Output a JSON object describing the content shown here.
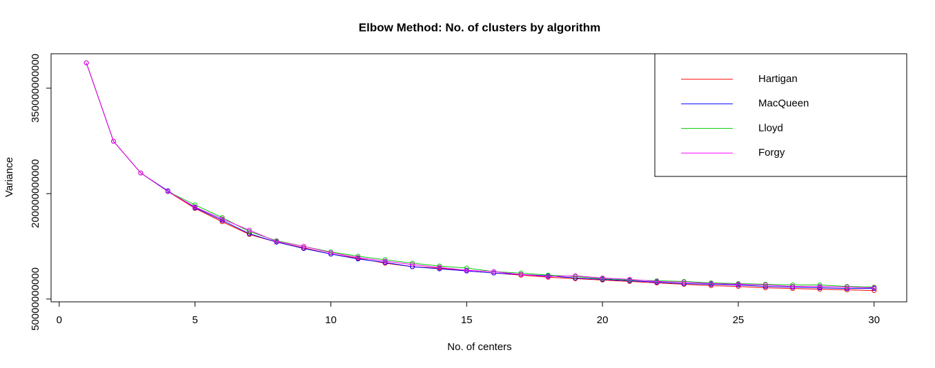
{
  "chart_data": {
    "type": "line",
    "title": "Elbow Method: No. of clusters by algorithm",
    "x_label": "No. of centers",
    "y_label": "Variance",
    "x": [
      1,
      2,
      3,
      4,
      5,
      6,
      7,
      8,
      9,
      10,
      11,
      12,
      13,
      14,
      15,
      16,
      17,
      18,
      19,
      20,
      21,
      22,
      23,
      24,
      25,
      26,
      27,
      28,
      29,
      30
    ],
    "series": [
      {
        "name": "Hartigan",
        "color": "#ff0000",
        "values": [
          386000000000,
          274500000000,
          229400000000,
          203000000000,
          179000000000,
          160000000000,
          142000000000,
          131000000000,
          123000000000,
          114000000000,
          108000000000,
          101000000000,
          96000000000,
          94000000000,
          90000000000,
          87000000000,
          84000000000,
          81000000000,
          79000000000,
          77000000000,
          75000000000,
          73000000000,
          71000000000,
          69000000000,
          68000000000,
          66000000000,
          65000000000,
          64000000000,
          63000000000,
          62000000000
        ]
      },
      {
        "name": "MacQueen",
        "color": "#0000ff",
        "values": [
          386000000000,
          274500000000,
          229400000000,
          204000000000,
          180000000000,
          162000000000,
          143000000000,
          131000000000,
          122000000000,
          114000000000,
          107000000000,
          102000000000,
          96000000000,
          93000000000,
          90000000000,
          87000000000,
          85000000000,
          83000000000,
          80000000000,
          78000000000,
          76000000000,
          74000000000,
          72000000000,
          71000000000,
          70000000000,
          68000000000,
          67000000000,
          66000000000,
          65000000000,
          65000000000
        ]
      },
      {
        "name": "Lloyd",
        "color": "#00cd00",
        "values": [
          386000000000,
          274500000000,
          229400000000,
          203000000000,
          184000000000,
          166000000000,
          146000000000,
          133000000000,
          125000000000,
          117000000000,
          111000000000,
          106000000000,
          101000000000,
          97000000000,
          94000000000,
          89000000000,
          87000000000,
          84000000000,
          82000000000,
          79000000000,
          77000000000,
          76000000000,
          75000000000,
          73000000000,
          72000000000,
          71000000000,
          70000000000,
          70000000000,
          68000000000,
          67000000000
        ]
      },
      {
        "name": "Forgy",
        "color": "#ff00ff",
        "values": [
          386000000000,
          274500000000,
          229400000000,
          203000000000,
          181000000000,
          164000000000,
          148000000000,
          132000000000,
          125000000000,
          116000000000,
          109000000000,
          104000000000,
          99000000000,
          95000000000,
          91000000000,
          89000000000,
          85000000000,
          82000000000,
          83000000000,
          80000000000,
          78000000000,
          75000000000,
          74000000000,
          72000000000,
          71000000000,
          70000000000,
          68000000000,
          68000000000,
          67000000000,
          66000000000
        ]
      }
    ],
    "xlim": [
      -0.3,
      31.2
    ],
    "ylim": [
      46000000000,
      399000000000
    ],
    "xticks": [
      0,
      5,
      10,
      15,
      20,
      25,
      30
    ],
    "yticks": [
      50000000000,
      200000000000,
      350000000000
    ],
    "legend": "topright"
  }
}
